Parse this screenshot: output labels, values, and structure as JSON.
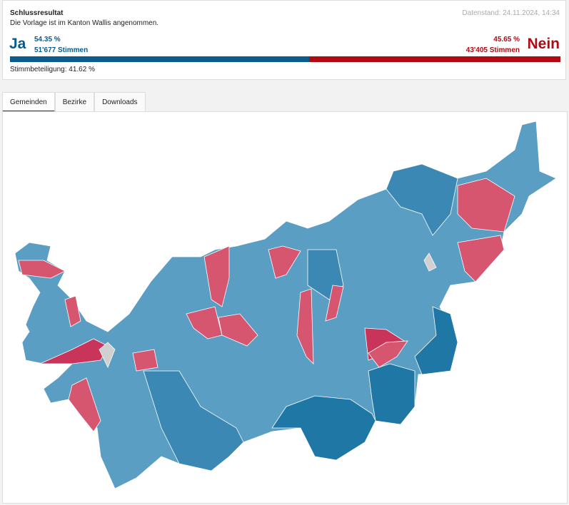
{
  "header": {
    "title": "Schlussresultat",
    "subtitle": "Die Vorlage ist im Kanton Wallis angenommen.",
    "date": "Datenstand: 24.11.2024, 14:34"
  },
  "result": {
    "yes": {
      "label": "Ja",
      "percent": {
        "value": 54.35,
        "label": "54.35 %"
      },
      "votes": "51'677 Stimmen",
      "color": "#0a5a8c"
    },
    "no": {
      "label": "Nein",
      "percent": {
        "value": 45.65,
        "label": "45.65 %"
      },
      "votes": "43'405 Stimmen",
      "color": "#b00a12"
    },
    "turnout": "Stimmbeteiligung: 41.62 %"
  },
  "tabs": [
    "Gemeinden",
    "Bezirke",
    "Downloads"
  ]
}
